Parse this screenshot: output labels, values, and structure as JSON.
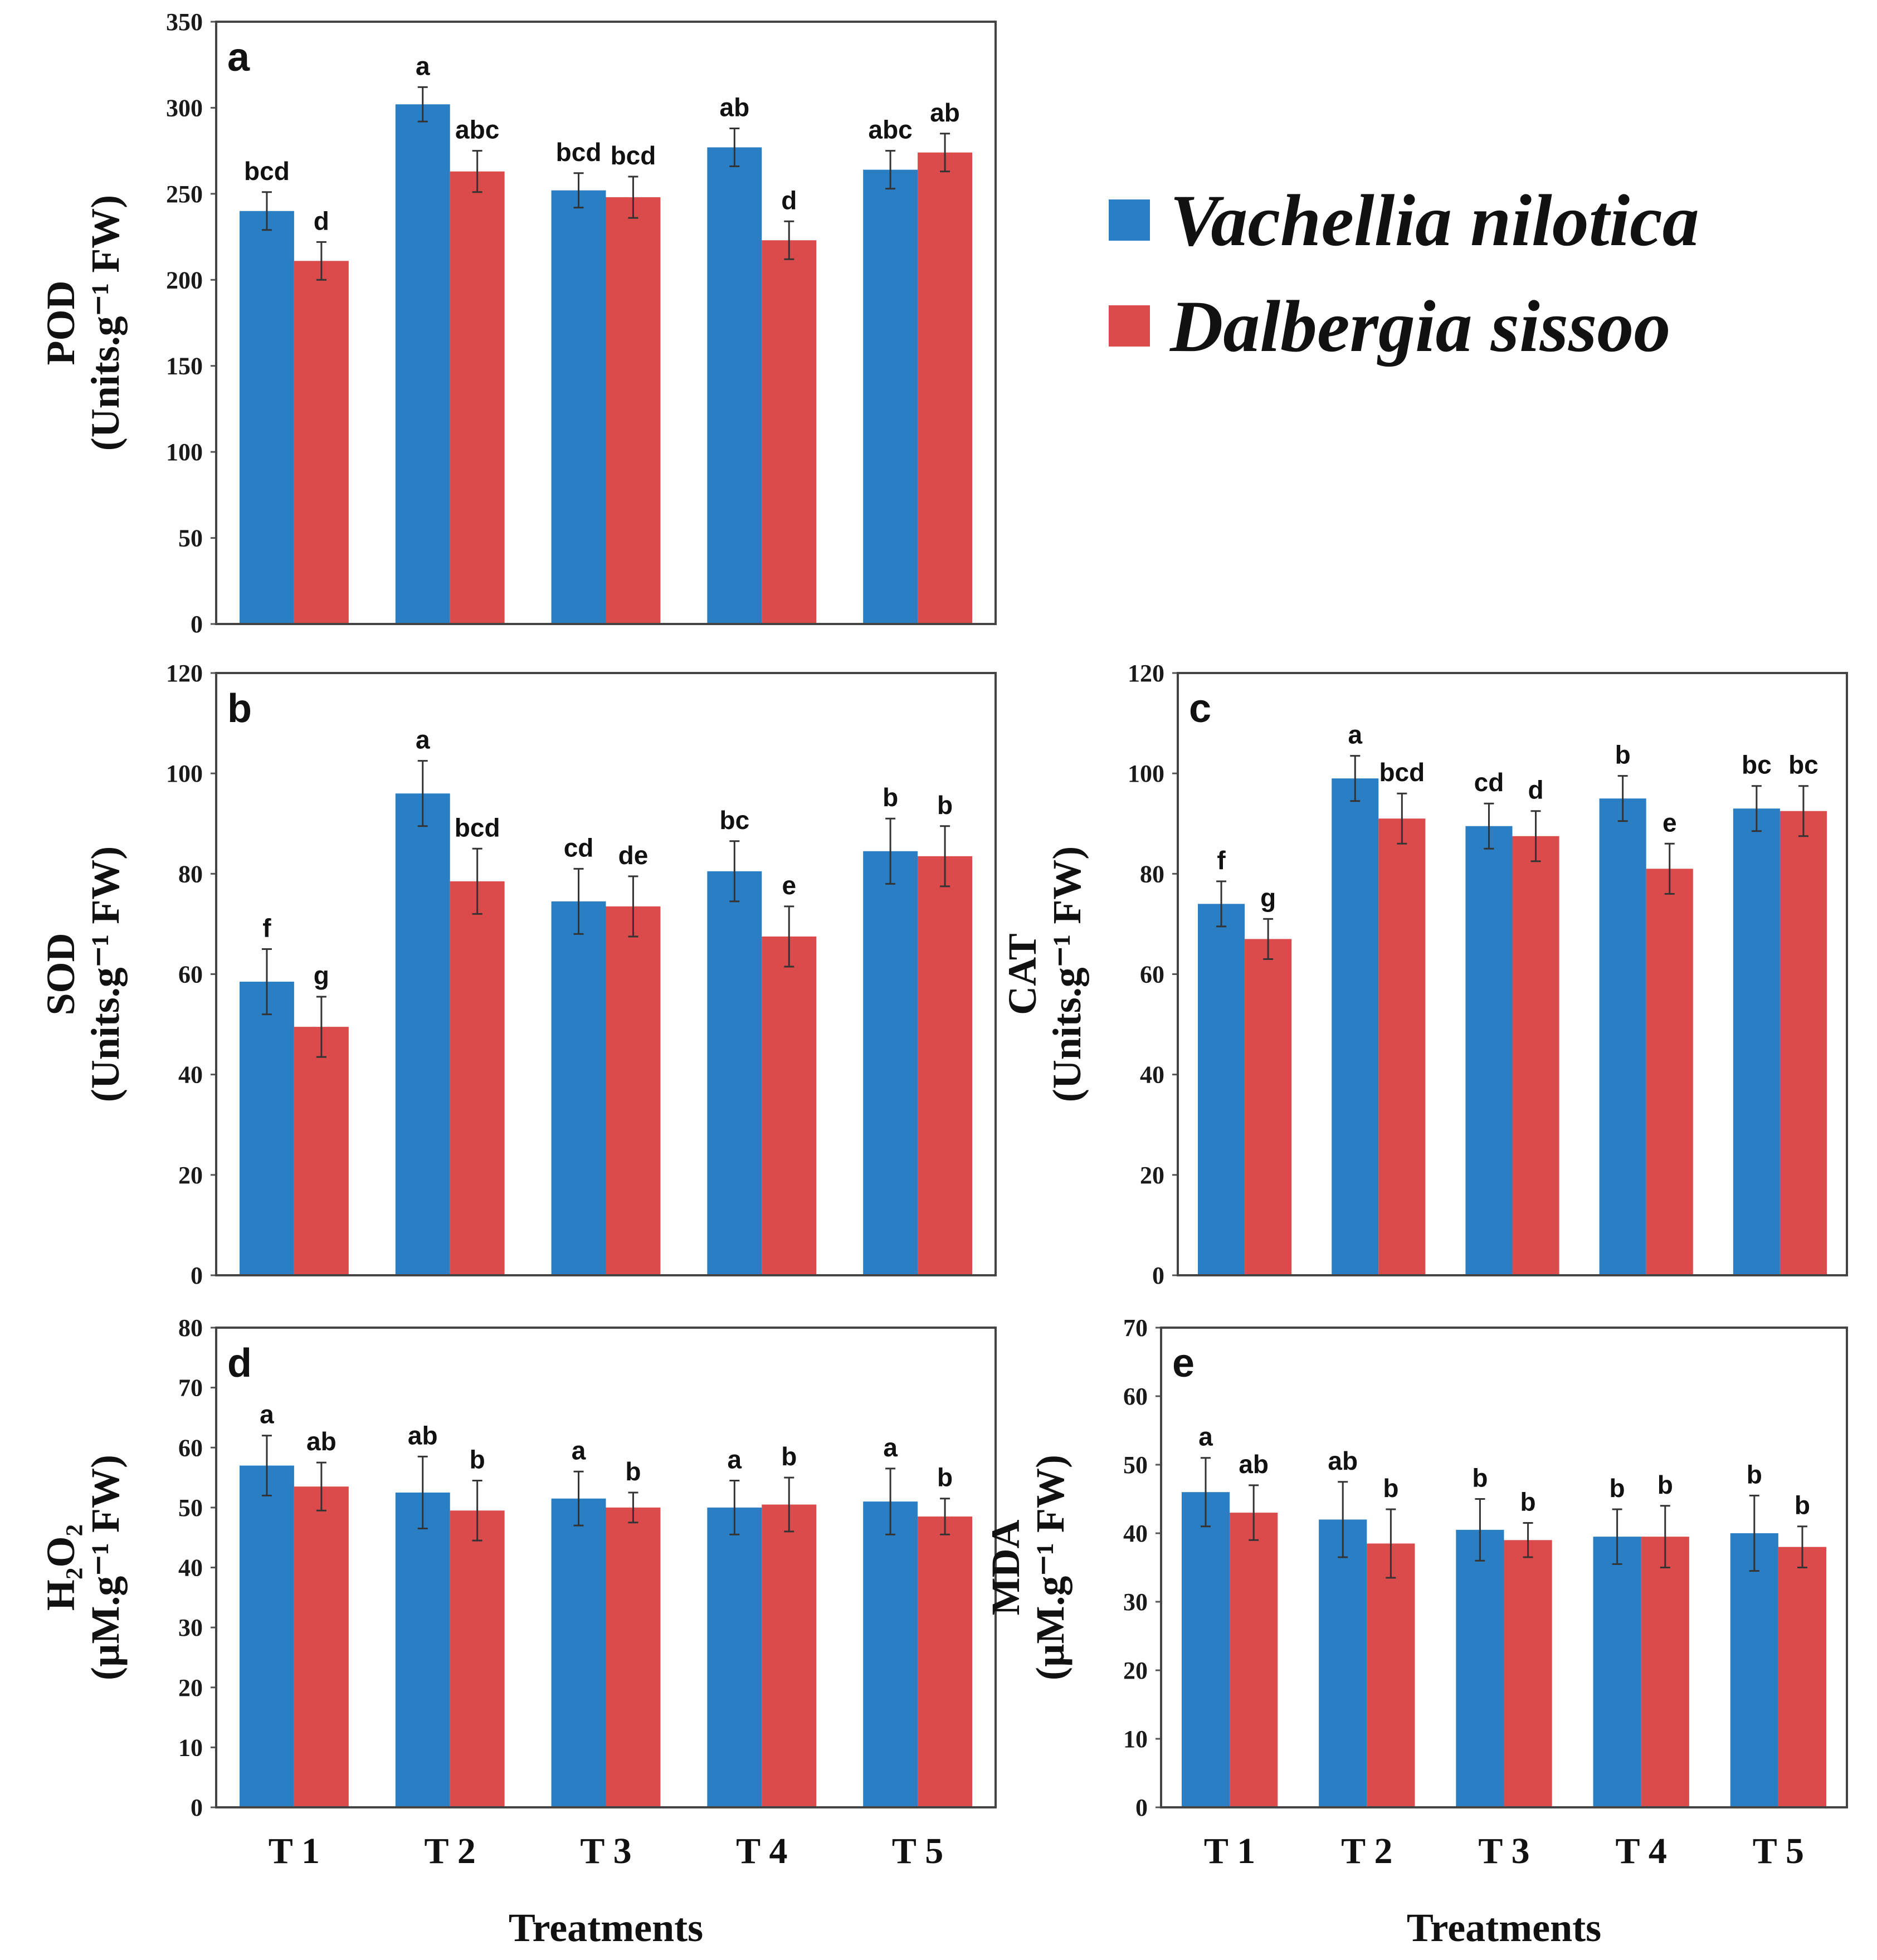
{
  "legend": {
    "series": [
      {
        "name": "Vachellia nilotica",
        "color": "#2a7fc4"
      },
      {
        "name": "Dalbergia sissoo",
        "color": "#dc4b4b"
      }
    ]
  },
  "chart_data": [
    {
      "type": "bar",
      "panel": "a",
      "categories": [
        "T 1",
        "T 2",
        "T 3",
        "T 4",
        "T 5"
      ],
      "ylabel_main": "POD",
      "ylabel_unit": "(Units.g⁻¹ FW)",
      "xlabel": "",
      "ylim": [
        0,
        350
      ],
      "yticks": [
        0,
        50,
        100,
        150,
        200,
        250,
        300,
        350
      ],
      "show_x_ticklabels": false,
      "series": [
        {
          "name": "Vachellia nilotica",
          "values": [
            240,
            302,
            252,
            277,
            264
          ],
          "errors": [
            11,
            10,
            10,
            11,
            11
          ],
          "letters": [
            "bcd",
            "a",
            "bcd",
            "ab",
            "abc"
          ]
        },
        {
          "name": "Dalbergia sissoo",
          "values": [
            211,
            263,
            248,
            223,
            274
          ],
          "errors": [
            11,
            12,
            12,
            11,
            11
          ],
          "letters": [
            "d",
            "abc",
            "bcd",
            "d",
            "ab"
          ]
        }
      ]
    },
    {
      "type": "bar",
      "panel": "b",
      "categories": [
        "T 1",
        "T 2",
        "T 3",
        "T 4",
        "T 5"
      ],
      "ylabel_main": "SOD",
      "ylabel_unit": "(Units.g⁻¹ FW)",
      "xlabel": "",
      "ylim": [
        0,
        120
      ],
      "yticks": [
        0,
        20,
        40,
        60,
        80,
        100,
        120
      ],
      "show_x_ticklabels": false,
      "series": [
        {
          "name": "Vachellia nilotica",
          "values": [
            58.5,
            96,
            74.5,
            80.5,
            84.5
          ],
          "errors": [
            6.5,
            6.5,
            6.5,
            6,
            6.5
          ],
          "letters": [
            "f",
            "a",
            "cd",
            "bc",
            "b"
          ]
        },
        {
          "name": "Dalbergia sissoo",
          "values": [
            49.5,
            78.5,
            73.5,
            67.5,
            83.5
          ],
          "errors": [
            6,
            6.5,
            6,
            6,
            6
          ],
          "letters": [
            "g",
            "bcd",
            "de",
            "e",
            "b"
          ]
        }
      ]
    },
    {
      "type": "bar",
      "panel": "c",
      "categories": [
        "T 1",
        "T 2",
        "T 3",
        "T 4",
        "T 5"
      ],
      "ylabel_main": "CAT",
      "ylabel_unit": "(Units.g⁻¹ FW)",
      "xlabel": "",
      "ylim": [
        0,
        120
      ],
      "yticks": [
        0,
        20,
        40,
        60,
        80,
        100,
        120
      ],
      "show_x_ticklabels": false,
      "series": [
        {
          "name": "Vachellia nilotica",
          "values": [
            74,
            99,
            89.5,
            95,
            93
          ],
          "errors": [
            4.5,
            4.5,
            4.5,
            4.5,
            4.5
          ],
          "letters": [
            "f",
            "a",
            "cd",
            "b",
            "bc"
          ]
        },
        {
          "name": "Dalbergia sissoo",
          "values": [
            67,
            91,
            87.5,
            81,
            92.5
          ],
          "errors": [
            4,
            5,
            5,
            5,
            5
          ],
          "letters": [
            "g",
            "bcd",
            "d",
            "e",
            "bc"
          ]
        }
      ]
    },
    {
      "type": "bar",
      "panel": "d",
      "categories": [
        "T 1",
        "T 2",
        "T 3",
        "T 4",
        "T 5"
      ],
      "ylabel_main": "H₂O₂",
      "ylabel_unit": "(µM.g⁻¹ FW)",
      "xlabel": "Treatments",
      "ylim": [
        0,
        80
      ],
      "yticks": [
        0,
        10,
        20,
        30,
        40,
        50,
        60,
        70,
        80
      ],
      "show_x_ticklabels": true,
      "series": [
        {
          "name": "Vachellia nilotica",
          "values": [
            57,
            52.5,
            51.5,
            50,
            51
          ],
          "errors": [
            5,
            6,
            4.5,
            4.5,
            5.5
          ],
          "letters": [
            "a",
            "ab",
            "a",
            "a",
            "a"
          ]
        },
        {
          "name": "Dalbergia sissoo",
          "values": [
            53.5,
            49.5,
            50,
            50.5,
            48.5
          ],
          "errors": [
            4,
            5,
            2.5,
            4.5,
            3
          ],
          "letters": [
            "ab",
            "b",
            "b",
            "b",
            "b"
          ]
        }
      ]
    },
    {
      "type": "bar",
      "panel": "e",
      "categories": [
        "T 1",
        "T 2",
        "T 3",
        "T 4",
        "T 5"
      ],
      "ylabel_main": "MDA",
      "ylabel_unit": "(µM.g⁻¹ FW)",
      "xlabel": "Treatments",
      "ylim": [
        0,
        70
      ],
      "yticks": [
        0,
        10,
        20,
        30,
        40,
        50,
        60,
        70
      ],
      "show_x_ticklabels": true,
      "series": [
        {
          "name": "Vachellia nilotica",
          "values": [
            46,
            42,
            40.5,
            39.5,
            40
          ],
          "errors": [
            5,
            5.5,
            4.5,
            4,
            5.5
          ],
          "letters": [
            "a",
            "ab",
            "b",
            "b",
            "b"
          ]
        },
        {
          "name": "Dalbergia sissoo",
          "values": [
            43,
            38.5,
            39,
            39.5,
            38
          ],
          "errors": [
            4,
            5,
            2.5,
            4.5,
            3
          ],
          "letters": [
            "ab",
            "b",
            "b",
            "b",
            "b"
          ]
        }
      ]
    }
  ]
}
